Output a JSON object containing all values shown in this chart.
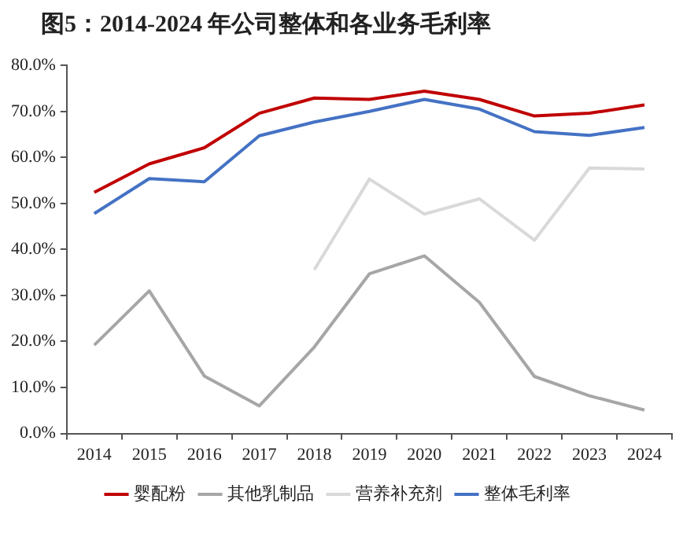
{
  "chart_data": {
    "type": "line",
    "title": "图5：2014-2024 年公司整体和各业务毛利率",
    "categories": [
      "2014",
      "2015",
      "2016",
      "2017",
      "2018",
      "2019",
      "2020",
      "2021",
      "2022",
      "2023",
      "2024"
    ],
    "series": [
      {
        "name": "婴配粉",
        "color": "#c00000",
        "values": [
          52.4,
          58.6,
          62.1,
          69.6,
          72.9,
          72.6,
          74.4,
          72.6,
          69.0,
          69.6,
          71.4
        ]
      },
      {
        "name": "其他乳制品",
        "color": "#a6a6a6",
        "values": [
          19.2,
          31.0,
          12.5,
          6.0,
          18.8,
          34.7,
          38.6,
          28.5,
          12.4,
          8.2,
          5.1
        ]
      },
      {
        "name": "营养补充剂",
        "color": "#d9d9d9",
        "values": [
          null,
          null,
          null,
          null,
          35.6,
          55.3,
          47.7,
          51.0,
          42.0,
          57.7,
          57.5
        ]
      },
      {
        "name": "整体毛利率",
        "color": "#4472c4",
        "values": [
          47.8,
          55.4,
          54.7,
          64.7,
          67.7,
          70.0,
          72.6,
          70.5,
          65.6,
          64.8,
          66.5
        ]
      }
    ],
    "ylim": [
      0,
      80
    ],
    "yticks": [
      {
        "value": 0,
        "label": "0.0%"
      },
      {
        "value": 10,
        "label": "10.0%"
      },
      {
        "value": 20,
        "label": "20.0%"
      },
      {
        "value": 30,
        "label": "30.0%"
      },
      {
        "value": 40,
        "label": "40.0%"
      },
      {
        "value": 50,
        "label": "50.0%"
      },
      {
        "value": 60,
        "label": "60.0%"
      },
      {
        "value": 70,
        "label": "70.0%"
      },
      {
        "value": 80,
        "label": "80.0%"
      }
    ],
    "grid": false,
    "legend": "bottom",
    "marker": "none",
    "line_style": "solid"
  }
}
